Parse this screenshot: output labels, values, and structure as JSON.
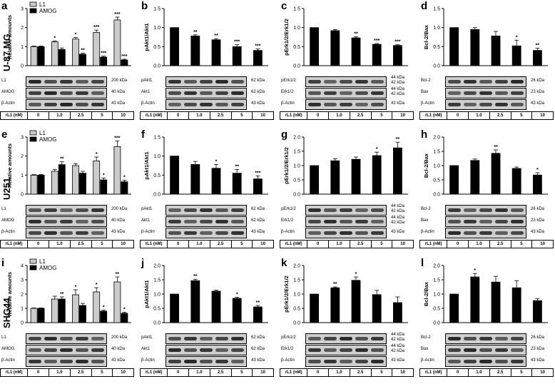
{
  "row_labels": [
    "U-87 MG",
    "U251",
    "SHG44"
  ],
  "dose_header": [
    "rL1 (nM)",
    "0",
    "1.0",
    "2.5",
    "5",
    "10"
  ],
  "chart_data": [
    {
      "letter": "a",
      "type": "bar",
      "ylabel": "Relative amounts",
      "ylim": [
        0,
        3
      ],
      "yticks": [
        "0",
        "1",
        "2",
        "3"
      ],
      "categories": [
        "0",
        "1.0",
        "2.5",
        "5",
        "10"
      ],
      "series": [
        {
          "name": "L1",
          "color": "#cccccc",
          "values": [
            1.0,
            1.25,
            1.4,
            1.75,
            2.4
          ],
          "err": [
            0.03,
            0.05,
            0.08,
            0.12,
            0.15
          ]
        },
        {
          "name": "AMOG",
          "color": "#000000",
          "values": [
            1.0,
            0.85,
            0.6,
            0.45,
            0.3
          ],
          "err": [
            0.03,
            0.08,
            0.06,
            0.05,
            0.04
          ]
        }
      ],
      "sig": [
        [
          "",
          "*",
          "*",
          "***",
          "***"
        ],
        [
          "",
          "",
          "**",
          "***",
          "***"
        ]
      ],
      "blots": [
        [
          "L1",
          "200 kDa"
        ],
        [
          "AMOG",
          "40 kDa"
        ],
        [
          "β-Actin",
          "43 kDa"
        ]
      ]
    },
    {
      "letter": "b",
      "type": "bar",
      "ylabel": "pAkt1/Akt1",
      "ylim": [
        0,
        1.5
      ],
      "yticks": [
        "0.0",
        "0.5",
        "1.0",
        "1.5"
      ],
      "categories": [
        "0",
        "1.0",
        "2.5",
        "5",
        "10"
      ],
      "series": [
        {
          "name": "",
          "color": "#000000",
          "values": [
            1.0,
            0.78,
            0.68,
            0.5,
            0.4
          ],
          "err": [
            0,
            0.03,
            0.03,
            0.05,
            0.04
          ]
        }
      ],
      "sig": [
        [
          "",
          "**",
          "**",
          "***",
          "***"
        ]
      ],
      "blots": [
        [
          "pAkt1",
          "62 kDa"
        ],
        [
          "Akt1",
          "62 kDa"
        ],
        [
          "β-Actin",
          "43 kDa"
        ]
      ]
    },
    {
      "letter": "c",
      "type": "bar",
      "ylabel": "pErk1/2/Erk1/2",
      "ylim": [
        0,
        1.5
      ],
      "yticks": [
        "0.0",
        "0.5",
        "1.0",
        "1.5"
      ],
      "categories": [
        "0",
        "1.0",
        "2.5",
        "5",
        "10"
      ],
      "series": [
        {
          "name": "",
          "color": "#000000",
          "values": [
            1.0,
            0.92,
            0.73,
            0.56,
            0.53
          ],
          "err": [
            0,
            0.03,
            0.03,
            0.02,
            0.02
          ]
        }
      ],
      "sig": [
        [
          "",
          "",
          "**",
          "***",
          "***"
        ]
      ],
      "blots": [
        [
          "pErk1/2",
          "44 kDa|42 kDa"
        ],
        [
          "Erk1/2",
          "44 kDa|42 kDa"
        ],
        [
          "β-Actin",
          "43 kDa"
        ]
      ]
    },
    {
      "letter": "d",
      "type": "bar",
      "ylabel": "Bcl-2/Bax",
      "ylim": [
        0,
        1.5
      ],
      "yticks": [
        "0.0",
        "0.5",
        "1.0",
        "1.5"
      ],
      "categories": [
        "0",
        "1.0",
        "2.5",
        "5",
        "10"
      ],
      "series": [
        {
          "name": "",
          "color": "#000000",
          "values": [
            1.0,
            0.95,
            0.78,
            0.52,
            0.4
          ],
          "err": [
            0,
            0.05,
            0.12,
            0.15,
            0.06
          ]
        }
      ],
      "sig": [
        [
          "",
          "",
          "",
          "*",
          "**"
        ]
      ],
      "blots": [
        [
          "Bcl-2",
          "26 kDa"
        ],
        [
          "Bax",
          "23 kDa"
        ],
        [
          "β-Actin",
          "43 kDa"
        ]
      ]
    },
    {
      "letter": "e",
      "type": "bar",
      "ylabel": "Relative amounts",
      "ylim": [
        0,
        3
      ],
      "yticks": [
        "0",
        "1",
        "2",
        "3"
      ],
      "categories": [
        "0",
        "1.0",
        "2.5",
        "5",
        "10"
      ],
      "series": [
        {
          "name": "L1",
          "color": "#cccccc",
          "values": [
            1.0,
            1.2,
            1.5,
            1.75,
            2.5
          ],
          "err": [
            0.03,
            0.1,
            0.1,
            0.2,
            0.3
          ]
        },
        {
          "name": "AMOG",
          "color": "#000000",
          "values": [
            1.0,
            1.55,
            1.1,
            0.75,
            0.65
          ],
          "err": [
            0.03,
            0.15,
            0.1,
            0.1,
            0.08
          ]
        }
      ],
      "sig": [
        [
          "",
          "",
          "",
          "*",
          "***"
        ],
        [
          "",
          "**",
          "",
          "*",
          "*"
        ]
      ],
      "blots": [
        [
          "L1",
          "200 kDa"
        ],
        [
          "AMOG",
          "40 kDa"
        ],
        [
          "β-Actin",
          "43 kDa"
        ]
      ]
    },
    {
      "letter": "f",
      "type": "bar",
      "ylabel": "pAkt1/Akt1",
      "ylim": [
        0,
        1.5
      ],
      "yticks": [
        "0.0",
        "0.5",
        "1.0",
        "1.5"
      ],
      "categories": [
        "0",
        "1.0",
        "2.5",
        "5",
        "10"
      ],
      "series": [
        {
          "name": "",
          "color": "#000000",
          "values": [
            1.0,
            0.78,
            0.68,
            0.55,
            0.4
          ],
          "err": [
            0,
            0.08,
            0.1,
            0.1,
            0.08
          ]
        }
      ],
      "sig": [
        [
          "",
          "",
          "*",
          "**",
          "***"
        ]
      ],
      "blots": [
        [
          "pAkt1",
          "62 kDa"
        ],
        [
          "Akt1",
          "62 kDa"
        ],
        [
          "β-Actin",
          "43 kDa"
        ]
      ]
    },
    {
      "letter": "g",
      "type": "bar",
      "ylabel": "pErk1/2/Erk1/2",
      "ylim": [
        0,
        2.0
      ],
      "yticks": [
        "0.0",
        "0.5",
        "1.0",
        "1.5",
        "2.0"
      ],
      "categories": [
        "0",
        "1.0",
        "2.5",
        "5",
        "10"
      ],
      "series": [
        {
          "name": "",
          "color": "#000000",
          "values": [
            1.0,
            1.17,
            1.22,
            1.35,
            1.62
          ],
          "err": [
            0,
            0.07,
            0.08,
            0.12,
            0.2
          ]
        }
      ],
      "sig": [
        [
          "",
          "",
          "",
          "*",
          "**"
        ]
      ],
      "blots": [
        [
          "pErk1/2",
          "44 kDa|42 kDa"
        ],
        [
          "Erk1/2",
          "44 kDa|42 kDa"
        ],
        [
          "β-Actin",
          "43 kDa"
        ]
      ]
    },
    {
      "letter": "h",
      "type": "bar",
      "ylabel": "Bcl-2/Bax",
      "ylim": [
        0,
        2.0
      ],
      "yticks": [
        "0.0",
        "0.5",
        "1.0",
        "1.5",
        "2.0"
      ],
      "categories": [
        "0",
        "1.0",
        "2.5",
        "5",
        "10"
      ],
      "series": [
        {
          "name": "",
          "color": "#000000",
          "values": [
            1.0,
            1.18,
            1.43,
            0.9,
            0.67
          ],
          "err": [
            0,
            0.05,
            0.12,
            0.05,
            0.08
          ]
        }
      ],
      "sig": [
        [
          "",
          "",
          "**",
          "",
          "*"
        ]
      ],
      "blots": [
        [
          "Bcl-2",
          "26 kDa"
        ],
        [
          "Bax",
          "23 kDa"
        ],
        [
          "β-Actin",
          "43 kDa"
        ]
      ]
    },
    {
      "letter": "i",
      "type": "bar",
      "ylabel": "Relative amounts",
      "ylim": [
        0,
        4
      ],
      "yticks": [
        "0",
        "1",
        "2",
        "3",
        "4"
      ],
      "categories": [
        "0",
        "1.0",
        "2.5",
        "5",
        "10"
      ],
      "series": [
        {
          "name": "L1",
          "color": "#cccccc",
          "values": [
            1.0,
            1.65,
            1.95,
            2.15,
            2.85
          ],
          "err": [
            0.03,
            0.2,
            0.35,
            0.3,
            0.35
          ]
        },
        {
          "name": "AMOG",
          "color": "#000000",
          "values": [
            1.0,
            1.65,
            1.2,
            0.8,
            0.65
          ],
          "err": [
            0.03,
            0.15,
            0.15,
            0.08,
            0.08
          ]
        }
      ],
      "sig": [
        [
          "",
          "",
          "*",
          "*",
          "**"
        ],
        [
          "",
          "**",
          "",
          "*",
          "*"
        ]
      ],
      "blots": [
        [
          "L1",
          "200 kDa"
        ],
        [
          "AMOG",
          "40 kDa"
        ],
        [
          "β-Actin",
          "43 kDa"
        ]
      ]
    },
    {
      "letter": "j",
      "type": "bar",
      "ylabel": "pAkt1/Akt1",
      "ylim": [
        0,
        2.0
      ],
      "yticks": [
        "0.0",
        "0.5",
        "1.0",
        "1.5",
        "2.0"
      ],
      "categories": [
        "0",
        "1.0",
        "2.5",
        "5",
        "10"
      ],
      "series": [
        {
          "name": "",
          "color": "#000000",
          "values": [
            1.0,
            1.47,
            1.1,
            0.85,
            0.55
          ],
          "err": [
            0,
            0.05,
            0.04,
            0.04,
            0.05
          ]
        }
      ],
      "sig": [
        [
          "",
          "**",
          "",
          "*",
          "**"
        ]
      ],
      "blots": [
        [
          "pAkt1",
          "62 kDa"
        ],
        [
          "Akt1",
          "62 kDa"
        ],
        [
          "β-Actin",
          "43 kDa"
        ]
      ]
    },
    {
      "letter": "k",
      "type": "bar",
      "ylabel": "pErk1/2/Erk1/2",
      "ylim": [
        0,
        2.0
      ],
      "yticks": [
        "0.0",
        "0.5",
        "1.0",
        "1.5",
        "2.0"
      ],
      "categories": [
        "0",
        "1.0",
        "2.5",
        "5",
        "10"
      ],
      "series": [
        {
          "name": "",
          "color": "#000000",
          "values": [
            1.0,
            1.22,
            1.48,
            0.98,
            0.7
          ],
          "err": [
            0,
            0.03,
            0.12,
            0.15,
            0.2
          ]
        }
      ],
      "sig": [
        [
          "",
          "**",
          "*",
          "",
          ""
        ]
      ],
      "blots": [
        [
          "pErk1/2",
          "44 kDa|42 kDa"
        ],
        [
          "Erk1/2",
          "44 kDa|42 kDa"
        ],
        [
          "β-Actin",
          "43 kDa"
        ]
      ]
    },
    {
      "letter": "l",
      "type": "bar",
      "ylabel": "Bcl-2/Bax",
      "ylim": [
        0,
        2.0
      ],
      "yticks": [
        "0.0",
        "0.5",
        "1.0",
        "1.5",
        "2.0"
      ],
      "categories": [
        "0",
        "1.0",
        "2.5",
        "5",
        "10"
      ],
      "series": [
        {
          "name": "",
          "color": "#000000",
          "values": [
            1.0,
            1.6,
            1.42,
            1.22,
            0.77
          ],
          "err": [
            0,
            0.12,
            0.2,
            0.25,
            0.07
          ]
        }
      ],
      "sig": [
        [
          "",
          "*",
          "",
          "",
          ""
        ]
      ],
      "blots": [
        [
          "Bcl-2",
          "26 kDa"
        ],
        [
          "Bax",
          "23 kDa"
        ],
        [
          "β-Actin",
          "43 kDa"
        ]
      ]
    }
  ]
}
